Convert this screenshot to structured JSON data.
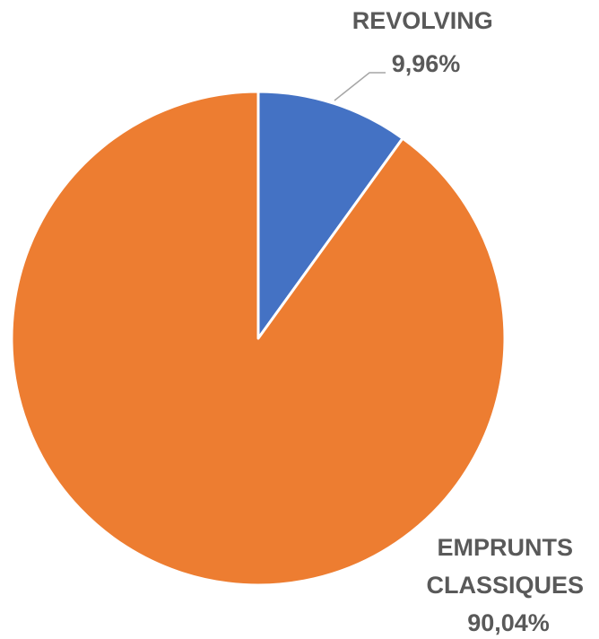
{
  "chart_data": {
    "type": "pie",
    "start_angle_deg": 0,
    "direction": "clockwise",
    "slices": [
      {
        "name": "REVOLVING",
        "label_lines": [
          "REVOLVING",
          "9,96%"
        ],
        "value": 9.96,
        "color": "#4472C4"
      },
      {
        "name": "EMPRUNTS CLASSIQUES",
        "label_lines": [
          "EMPRUNTS",
          "CLASSIQUES",
          "90,04%"
        ],
        "value": 90.04,
        "color": "#ED7D31"
      }
    ],
    "legend": "none",
    "data_labels": "outside",
    "leader_line_color": "#A6A6A6"
  }
}
